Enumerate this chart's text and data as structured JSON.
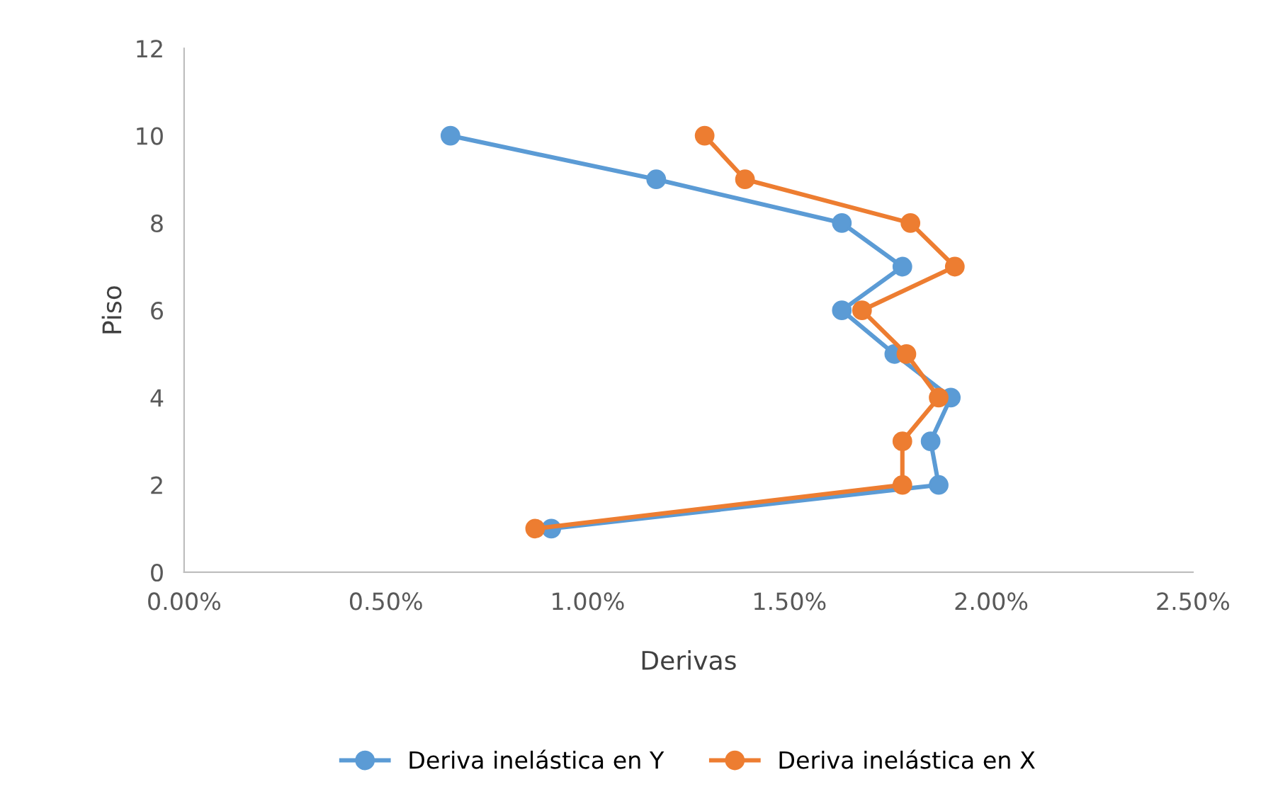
{
  "chart_data": {
    "type": "line",
    "xlabel": "Derivas",
    "ylabel": "Piso",
    "series": [
      {
        "name": "Deriva inelástica en Y",
        "color": "#5b9bd5",
        "x": [
          0.66,
          1.17,
          1.63,
          1.78,
          1.63,
          1.76,
          1.9,
          1.85,
          1.87,
          0.91
        ],
        "values": [
          10,
          9,
          8,
          7,
          6,
          5,
          4,
          3,
          2,
          1
        ]
      },
      {
        "name": "Deriva inelástica en X",
        "color": "#ed7d31",
        "x": [
          1.29,
          1.39,
          1.8,
          1.91,
          1.68,
          1.79,
          1.87,
          1.78,
          1.78,
          0.87
        ],
        "values": [
          10,
          9,
          8,
          7,
          6,
          5,
          4,
          3,
          2,
          1
        ]
      }
    ],
    "xlim": [
      0,
      2.5
    ],
    "xticks": [
      {
        "value": 0,
        "label": "0.00%"
      },
      {
        "value": 0.5,
        "label": "0.50%"
      },
      {
        "value": 1.0,
        "label": "1.00%"
      },
      {
        "value": 1.5,
        "label": "1.50%"
      },
      {
        "value": 2.0,
        "label": "2.00%"
      },
      {
        "value": 2.5,
        "label": "2.50%"
      }
    ],
    "ylim": [
      0,
      12
    ],
    "yticks": [
      0,
      2,
      4,
      6,
      8,
      10,
      12
    ],
    "grid": false,
    "legend": "bottom",
    "marker": "circle",
    "line_style": "solid"
  }
}
